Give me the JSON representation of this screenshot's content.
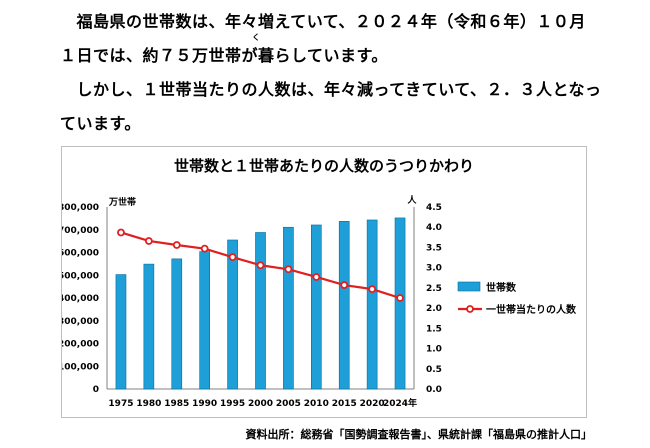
{
  "text": {
    "line1": "　福島県の世帯数は、年々増えていて、２０２４年（令和６年）１０月",
    "line2": "１日では、約７５万世帯が暮らしています。",
    "ruby": "く",
    "line3": "　しかし、１世帯当たりの人数は、年々減ってきていて、２．３人となっ",
    "line4": "ています。"
  },
  "source": "資料出所：総務省「国勢調査報告書」、県統計課「福島県の推計人口」",
  "colors": {
    "bar": "#1f9fd8",
    "line": "#e02020",
    "marker_fill": "#ffffff"
  },
  "chart_data": {
    "type": "bar",
    "title": "世帯数と１世帯あたりの人数のうつりかわり",
    "categories": [
      "1975",
      "1980",
      "1985",
      "1990",
      "1995",
      "2000",
      "2005",
      "2010",
      "2015",
      "2020",
      "2024年"
    ],
    "y_left": {
      "label": "万世帯",
      "range": [
        0,
        800000
      ],
      "ticks": [
        "0",
        "100,000",
        "200,000",
        "300,000",
        "400,000",
        "500,000",
        "600,000",
        "700,000",
        "800,000"
      ]
    },
    "y_right": {
      "label": "人",
      "range": [
        0,
        4.5
      ],
      "ticks": [
        "0.0",
        "0.5",
        "1.0",
        "1.5",
        "2.0",
        "2.5",
        "3.0",
        "3.5",
        "4.0",
        "4.5"
      ]
    },
    "grid": false,
    "legend_position": "right",
    "series": [
      {
        "name": "世帯数",
        "type": "bar",
        "axis": "left",
        "values": [
          503000,
          549000,
          572000,
          604000,
          655000,
          688000,
          711000,
          721000,
          737000,
          743000,
          752000
        ]
      },
      {
        "name": "一世帯当たりの人数",
        "type": "line",
        "axis": "right",
        "values": [
          3.87,
          3.66,
          3.56,
          3.47,
          3.26,
          3.06,
          2.96,
          2.77,
          2.57,
          2.47,
          2.25
        ]
      }
    ]
  }
}
